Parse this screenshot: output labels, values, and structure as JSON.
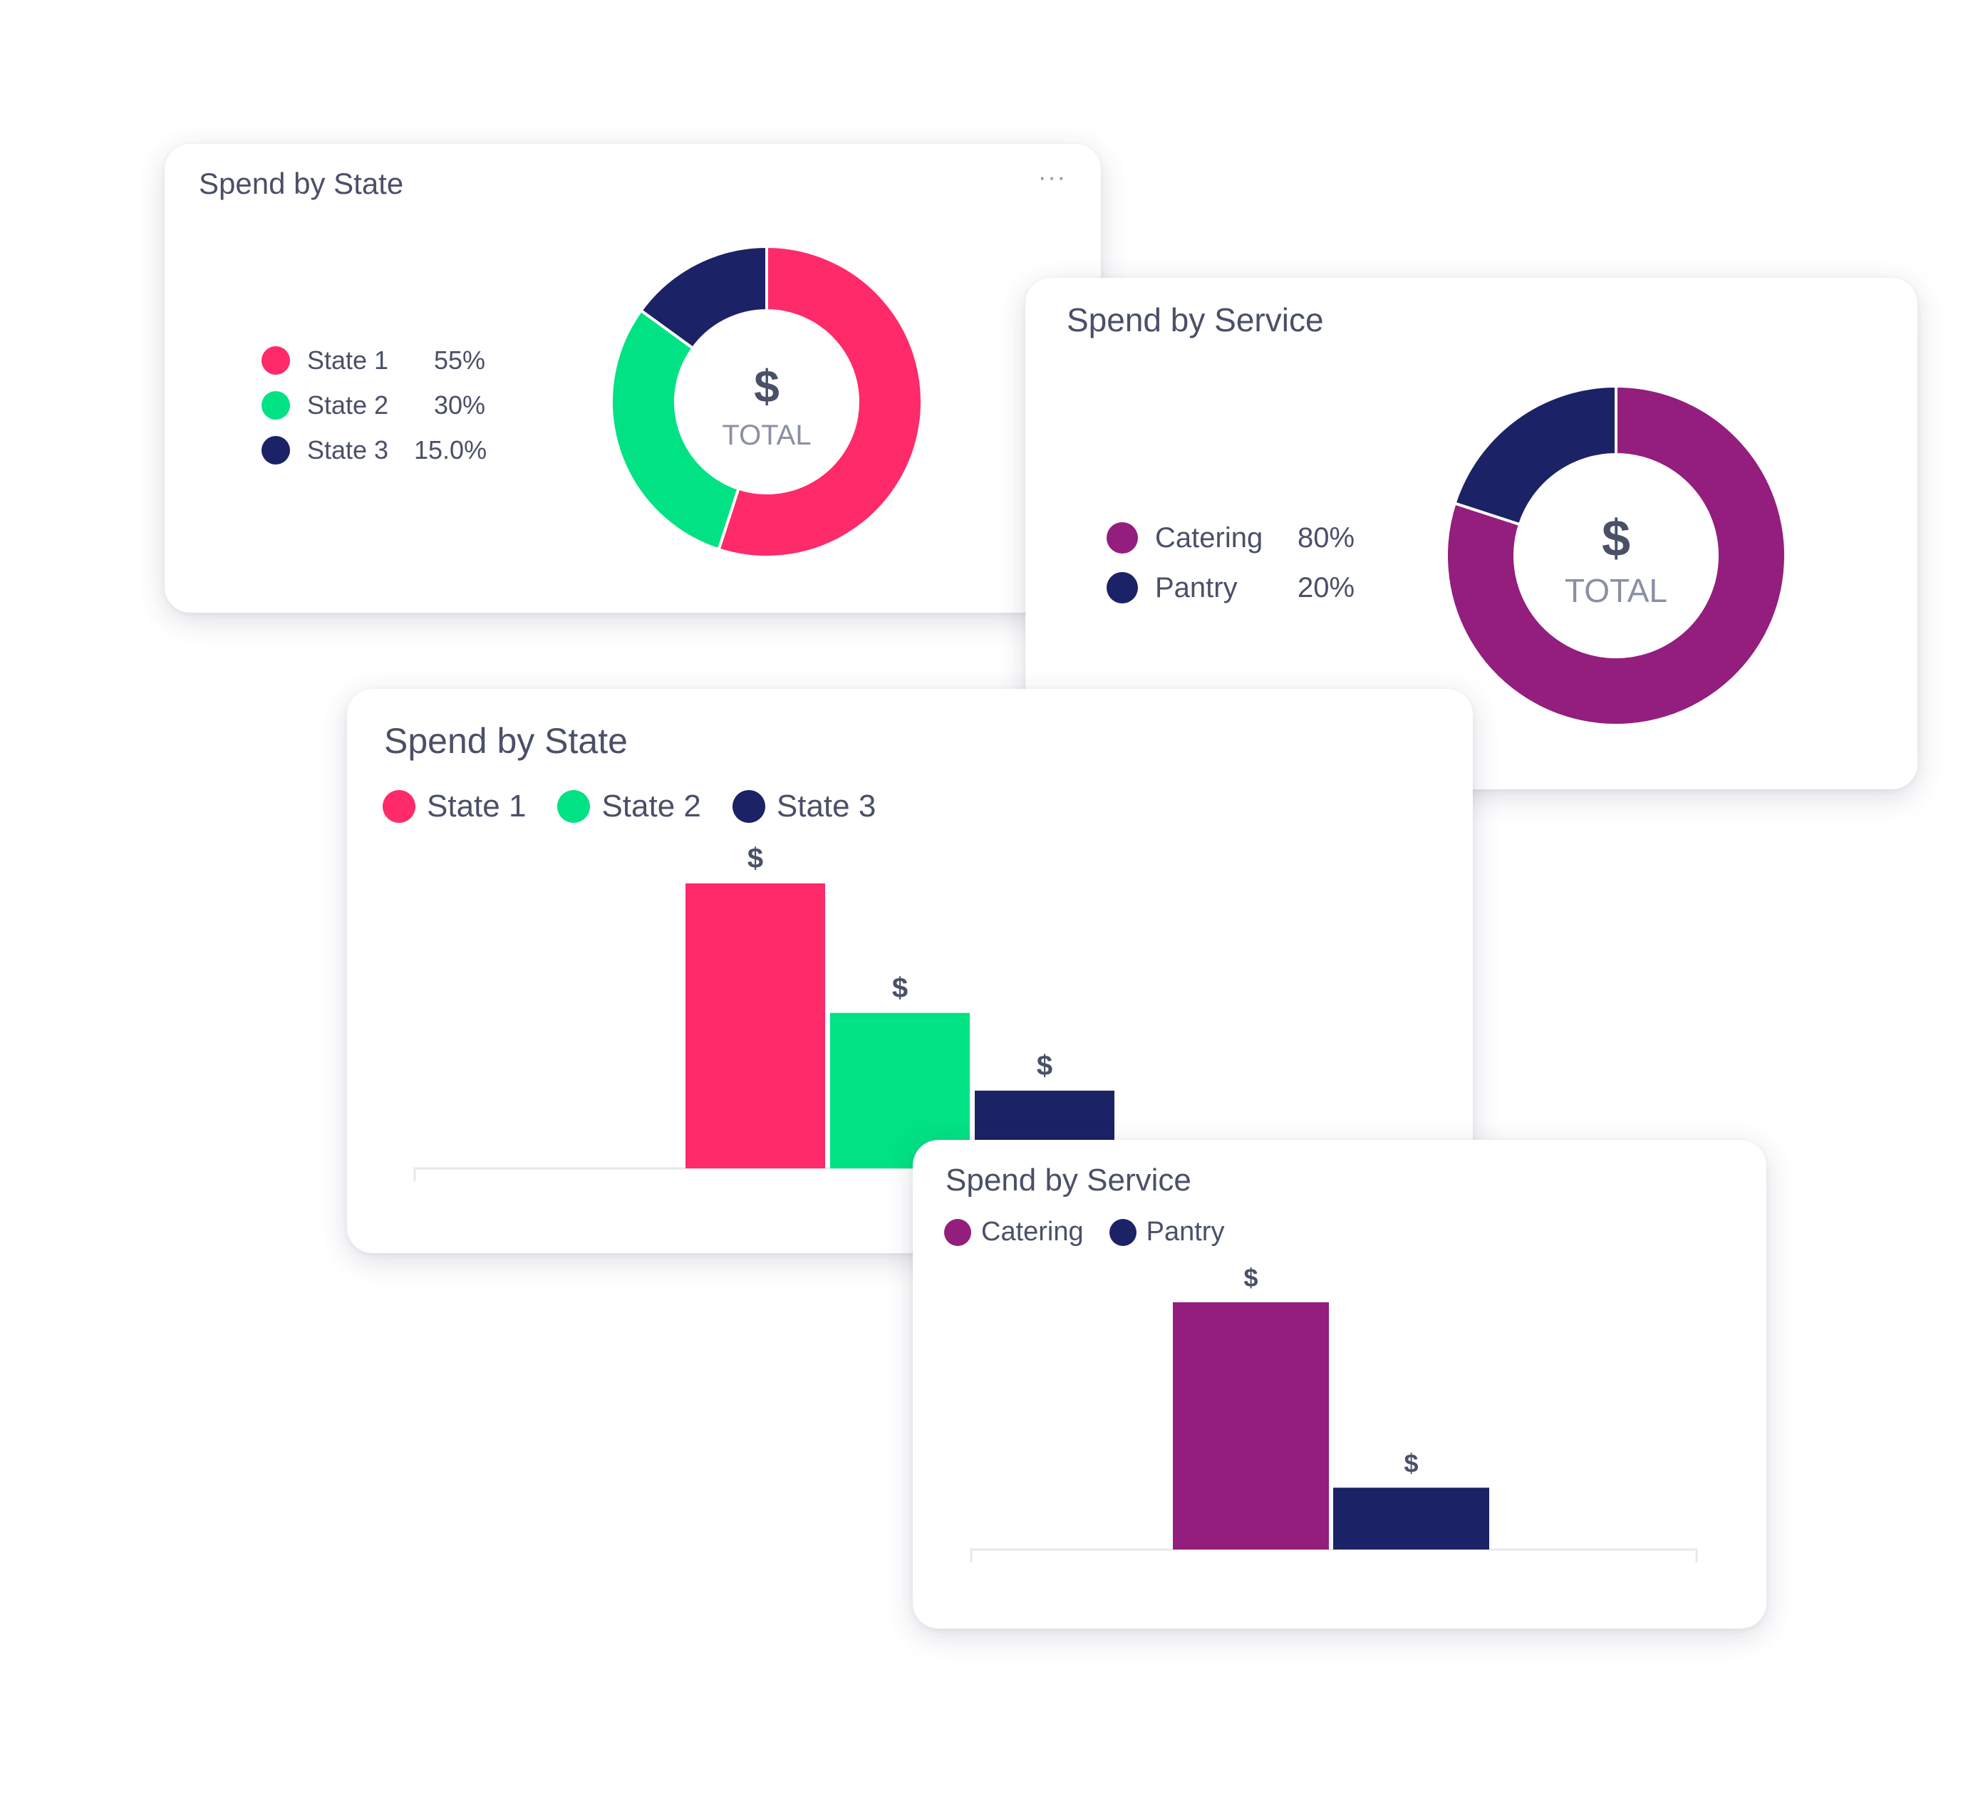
{
  "colors": {
    "state1": "#ff2a69",
    "state2": "#00e284",
    "state3": "#1c2266",
    "catering": "#931e7d",
    "pantry": "#1c2266",
    "text": "#4a5068",
    "muted": "#8a90a3"
  },
  "card1": {
    "menu_icon": "more-horizontal-icon",
    "menu_glyph": "···"
  },
  "chart_data": [
    {
      "type": "pie",
      "title": "Spend by State",
      "center_symbol": "$",
      "center_label": "TOTAL",
      "categories": [
        "State 1",
        "State 2",
        "State 3"
      ],
      "values": [
        55,
        30,
        15
      ],
      "value_labels": [
        "55%",
        "30%",
        "15.0%"
      ],
      "colors": [
        "#ff2a69",
        "#00e284",
        "#1c2266"
      ],
      "legend": "left"
    },
    {
      "type": "pie",
      "title": "Spend by Service",
      "center_symbol": "$",
      "center_label": "TOTAL",
      "categories": [
        "Catering",
        "Pantry"
      ],
      "values": [
        80,
        20
      ],
      "value_labels": [
        "80%",
        "20%"
      ],
      "colors": [
        "#931e7d",
        "#1c2266"
      ],
      "legend": "left"
    },
    {
      "type": "bar",
      "title": "Spend by State",
      "categories": [
        "State 1",
        "State 2",
        "State 3"
      ],
      "values": [
        55,
        30,
        15
      ],
      "data_labels": [
        "$",
        "$",
        "$"
      ],
      "colors": [
        "#ff2a69",
        "#00e284",
        "#1c2266"
      ],
      "ylim": [
        0,
        55
      ],
      "grid": false,
      "legend": "top-left"
    },
    {
      "type": "bar",
      "title": "Spend by Service",
      "categories": [
        "Catering",
        "Pantry"
      ],
      "values": [
        80,
        20
      ],
      "data_labels": [
        "$",
        "$"
      ],
      "colors": [
        "#931e7d",
        "#1c2266"
      ],
      "ylim": [
        0,
        80
      ],
      "grid": false,
      "legend": "top-left"
    }
  ]
}
